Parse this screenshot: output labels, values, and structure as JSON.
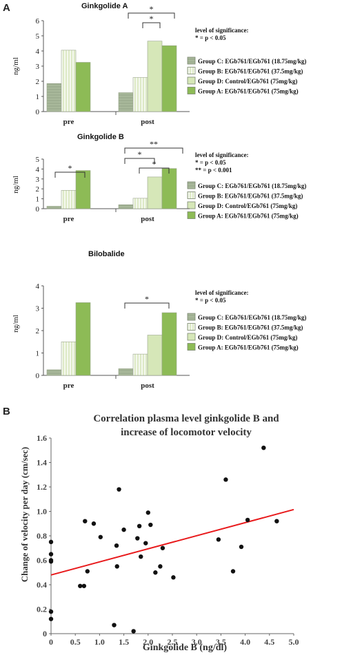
{
  "figure": {
    "panel_a": "A",
    "panel_b": "B"
  },
  "legend": [
    {
      "label": "Group C: EGb761/EGb761 (18.75mg/kg)",
      "pattern": "group-c"
    },
    {
      "label": "Group B: EGb761/EGb761 (37.5mg/kg)",
      "pattern": "group-b"
    },
    {
      "label": "Group D: Control/EGb761 (75mg/kg)",
      "pattern": "group-d"
    },
    {
      "label": "Group A: EGb761/EGb761 (75mg/kg)",
      "pattern": "group-a"
    }
  ],
  "colors": {
    "group-c": "#a8b89a",
    "group-b": "#c5dba6",
    "group-d": "#d6e7b8",
    "group-a": "#8dbb56",
    "regression": "#e8191b"
  },
  "chart_data": [
    {
      "type": "bar",
      "title": "Ginkgolide A",
      "ylabel": "ng/ml",
      "ylim": [
        0,
        6
      ],
      "yticks": [
        "0",
        "1",
        "2",
        "3",
        "4",
        "5",
        "6"
      ],
      "categories": [
        "pre",
        "post"
      ],
      "series": [
        {
          "name": "Group C: EGb761/EGb761 (18.75mg/kg)",
          "values": [
            1.85,
            1.25
          ]
        },
        {
          "name": "Group B: EGb761/EGb761 (37.5mg/kg)",
          "values": [
            4.05,
            2.25
          ]
        },
        {
          "name": "Group D: Control/EGb761 (75mg/kg)",
          "values": [
            null,
            4.65
          ]
        },
        {
          "name": "Group A: EGb761/EGb761 (75mg/kg)",
          "values": [
            3.25,
            4.35
          ]
        }
      ],
      "significance": [
        "level of significance:",
        "* = p < 0.05"
      ],
      "annotations": [
        "*",
        "*"
      ]
    },
    {
      "type": "bar",
      "title": "Ginkgolide B",
      "ylabel": "ng/ml",
      "ylim": [
        0,
        5
      ],
      "yticks": [
        "0",
        "1",
        "2",
        "3",
        "4",
        "5"
      ],
      "categories": [
        "pre",
        "post"
      ],
      "series": [
        {
          "name": "Group C: EGb761/EGb761 (18.75mg/kg)",
          "values": [
            0.25,
            0.4
          ]
        },
        {
          "name": "Group B: EGb761/EGb761 (37.5mg/kg)",
          "values": [
            1.85,
            1.05
          ]
        },
        {
          "name": "Group D: Control/EGb761 (75mg/kg)",
          "values": [
            null,
            3.2
          ]
        },
        {
          "name": "Group A: EGb761/EGb761 (75mg/kg)",
          "values": [
            3.85,
            4.05
          ]
        }
      ],
      "significance": [
        "level of significance:",
        "*   = p < 0.05",
        "** = p < 0.001"
      ],
      "annotations": [
        "*",
        "*",
        "*",
        "**"
      ]
    },
    {
      "type": "bar",
      "title": "Bilobalide",
      "ylabel": "ng/ml",
      "ylim": [
        0,
        4
      ],
      "yticks": [
        "0",
        "1",
        "2",
        "3",
        "4"
      ],
      "categories": [
        "pre",
        "post"
      ],
      "series": [
        {
          "name": "Group C: EGb761/EGb761 (18.75mg/kg)",
          "values": [
            0.25,
            0.3
          ]
        },
        {
          "name": "Group B: EGb761/EGb761 (37.5mg/kg)",
          "values": [
            1.5,
            0.95
          ]
        },
        {
          "name": "Group D: Control/EGb761 (75mg/kg)",
          "values": [
            null,
            1.8
          ]
        },
        {
          "name": "Group A: EGb761/EGb761 (75mg/kg)",
          "values": [
            3.25,
            2.8
          ]
        }
      ],
      "significance": [
        "level of significance:",
        "* = p < 0.05"
      ],
      "annotations": [
        "*"
      ]
    },
    {
      "type": "scatter",
      "title": "Correlation plasma level ginkgolide B and",
      "subtitle": "increase of locomotor velocity",
      "xlabel": "Ginkgolide B (ng/dl)",
      "ylabel": "Change of velocity per day (cm/sec)",
      "xlim": [
        0,
        5
      ],
      "ylim": [
        0,
        1.6
      ],
      "xticks": [
        "0",
        "0.5",
        "1.0",
        "1.5",
        "2.0",
        "2.5",
        "3.0",
        "3.5",
        "4.0",
        "4.5",
        "5.0"
      ],
      "yticks": [
        "0",
        "0.2",
        "0.4",
        "0.6",
        "0.8",
        "1.0",
        "1.2",
        "1.4",
        "1.6"
      ],
      "points": [
        [
          0.0,
          0.75
        ],
        [
          0.0,
          0.65
        ],
        [
          0.0,
          0.6
        ],
        [
          0.0,
          0.59
        ],
        [
          0.0,
          0.18
        ],
        [
          0.0,
          0.12
        ],
        [
          0.6,
          0.39
        ],
        [
          0.68,
          0.39
        ],
        [
          0.7,
          0.92
        ],
        [
          0.75,
          0.51
        ],
        [
          0.88,
          0.9
        ],
        [
          1.02,
          0.79
        ],
        [
          1.3,
          0.07
        ],
        [
          1.35,
          0.72
        ],
        [
          1.36,
          0.55
        ],
        [
          1.4,
          1.18
        ],
        [
          1.5,
          0.85
        ],
        [
          1.7,
          0.02
        ],
        [
          1.78,
          0.78
        ],
        [
          1.82,
          0.88
        ],
        [
          1.85,
          0.63
        ],
        [
          1.95,
          0.74
        ],
        [
          2.0,
          0.99
        ],
        [
          2.05,
          0.89
        ],
        [
          2.15,
          0.5
        ],
        [
          2.25,
          0.55
        ],
        [
          2.3,
          0.7
        ],
        [
          2.52,
          0.46
        ],
        [
          3.45,
          0.77
        ],
        [
          3.6,
          1.26
        ],
        [
          3.75,
          0.51
        ],
        [
          3.92,
          0.71
        ],
        [
          4.05,
          0.93
        ],
        [
          4.38,
          1.52
        ],
        [
          4.65,
          0.92
        ]
      ],
      "regression": {
        "intercept": 0.48,
        "slope": 0.107
      }
    }
  ]
}
